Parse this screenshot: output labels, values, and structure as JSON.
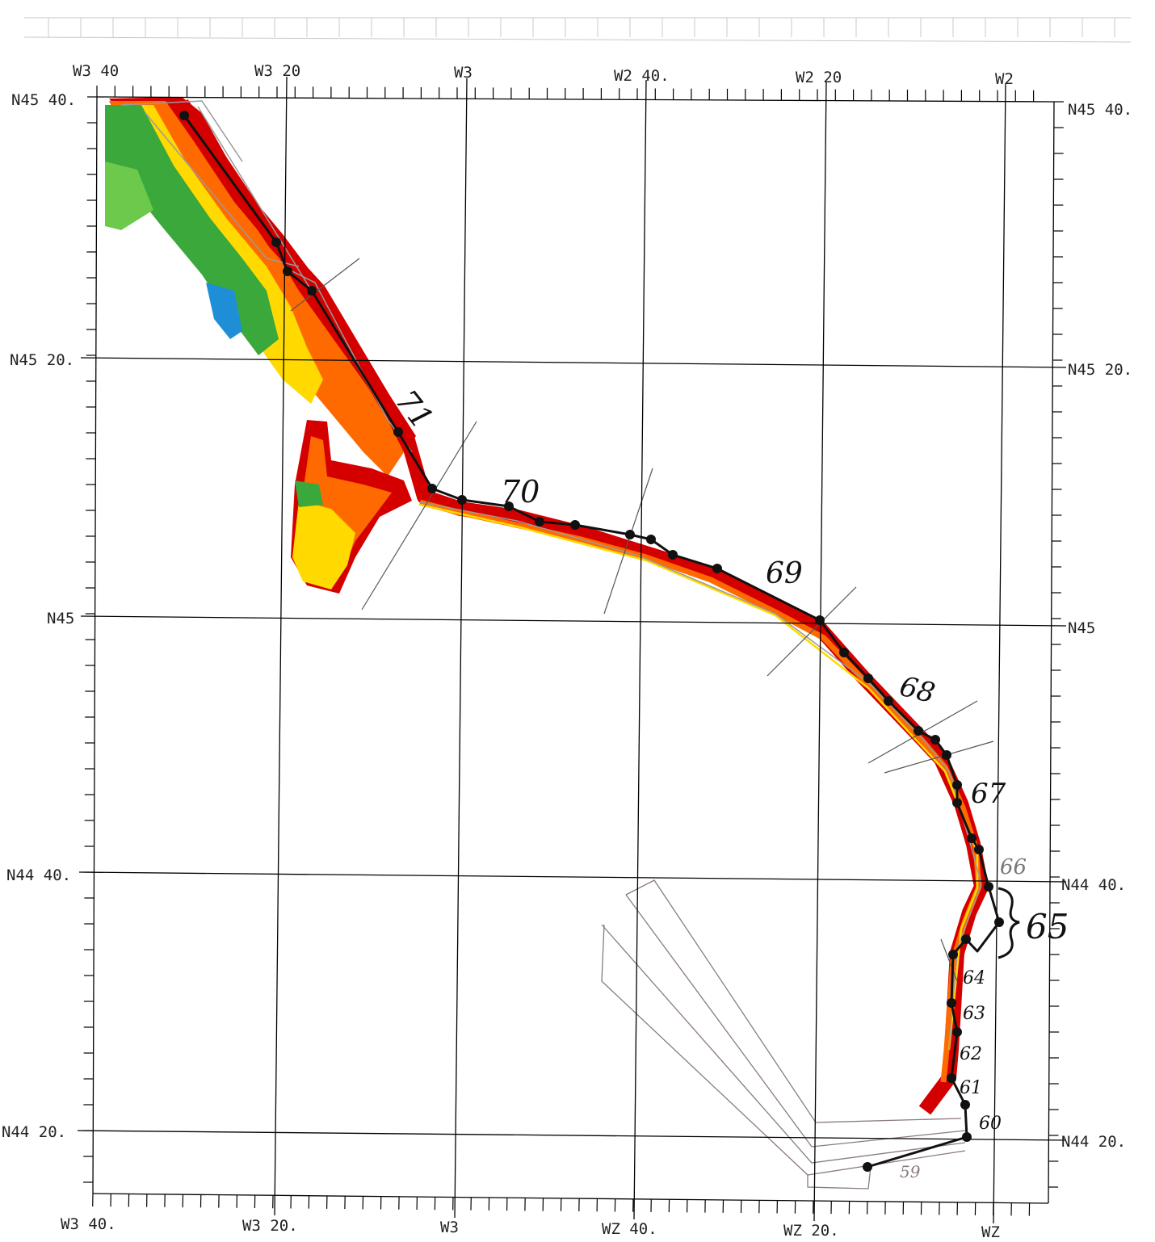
{
  "labels": {
    "top": [
      "W3 40",
      "W3 20",
      "W3",
      "W2 40.",
      "W2 20",
      "W2"
    ],
    "bottom": [
      "W3 40.",
      "W3 20.",
      "W3",
      "WZ 40.",
      "WZ 20.",
      "WZ"
    ],
    "left": [
      "N45 40.",
      "N45 20.",
      "N45",
      "N44 40.",
      "N44 20."
    ],
    "right": [
      "N45 40.",
      "N45 20.",
      "N45",
      "N44 40.",
      "N44 20."
    ]
  },
  "annotations": [
    "71",
    "70",
    "69",
    "68",
    "67",
    "66",
    "65",
    "64",
    "63",
    "62",
    "61",
    "60",
    "59"
  ],
  "colors": {
    "line": "#111111",
    "grid": "#000000",
    "swath_red": "#d40000",
    "swath_orange": "#ff6a00",
    "swath_yellow": "#ffd900",
    "swath_green": "#3aa83a",
    "swath_blue": "#1e8fd6",
    "outline": "#8a7a85"
  }
}
